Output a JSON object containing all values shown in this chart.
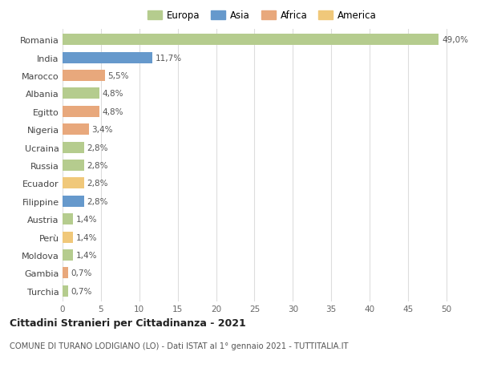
{
  "countries": [
    "Romania",
    "India",
    "Marocco",
    "Albania",
    "Egitto",
    "Nigeria",
    "Ucraina",
    "Russia",
    "Ecuador",
    "Filippine",
    "Austria",
    "Perù",
    "Moldova",
    "Gambia",
    "Turchia"
  ],
  "values": [
    49.0,
    11.7,
    5.5,
    4.8,
    4.8,
    3.4,
    2.8,
    2.8,
    2.8,
    2.8,
    1.4,
    1.4,
    1.4,
    0.7,
    0.7
  ],
  "labels": [
    "49,0%",
    "11,7%",
    "5,5%",
    "4,8%",
    "4,8%",
    "3,4%",
    "2,8%",
    "2,8%",
    "2,8%",
    "2,8%",
    "1,4%",
    "1,4%",
    "1,4%",
    "0,7%",
    "0,7%"
  ],
  "continents": [
    "Europa",
    "Asia",
    "Africa",
    "Europa",
    "Africa",
    "Africa",
    "Europa",
    "Europa",
    "America",
    "Asia",
    "Europa",
    "America",
    "Europa",
    "Africa",
    "Europa"
  ],
  "continent_colors": {
    "Europa": "#b5cc8e",
    "Asia": "#6699cc",
    "Africa": "#e8a87c",
    "America": "#f0c87a"
  },
  "legend_order": [
    "Europa",
    "Asia",
    "Africa",
    "America"
  ],
  "xlim": [
    0,
    52
  ],
  "xticks": [
    0,
    5,
    10,
    15,
    20,
    25,
    30,
    35,
    40,
    45,
    50
  ],
  "title": "Cittadini Stranieri per Cittadinanza - 2021",
  "subtitle": "COMUNE DI TURANO LODIGIANO (LO) - Dati ISTAT al 1° gennaio 2021 - TUTTITALIA.IT",
  "bg_color": "#ffffff",
  "grid_color": "#dddddd"
}
